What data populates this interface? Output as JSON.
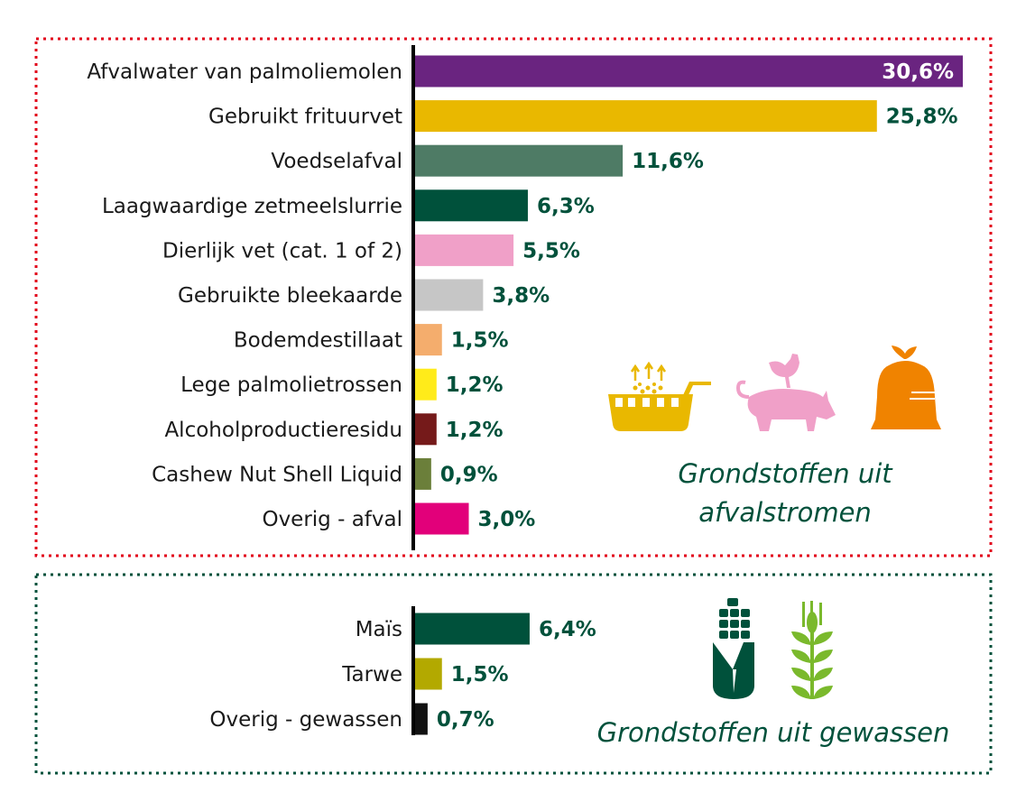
{
  "chart_data": [
    {
      "type": "bar",
      "orientation": "horizontal",
      "title": "Grondstoffen uit afvalstromen",
      "unit": "%",
      "categories": [
        "Afvalwater van palmoliemolen",
        "Gebruikt frituurvet",
        "Voedselafval",
        "Laagwaardige zetmeelslurrie",
        "Dierlijk vet (cat. 1 of 2)",
        "Gebruikte bleekaarde",
        "Bodemdestillaat",
        "Lege palmolietrossen",
        "Alcoholproductieresidu",
        "Cashew Nut Shell Liquid",
        "Overig - afval"
      ],
      "values": [
        30.6,
        25.8,
        11.6,
        6.3,
        5.5,
        3.8,
        1.5,
        1.2,
        1.2,
        0.9,
        3.0
      ],
      "labels": [
        "30,6%",
        "25,8%",
        "11,6%",
        "6,3%",
        "5,5%",
        "3,8%",
        "1,5%",
        "1,2%",
        "1,2%",
        "0,9%",
        "3,0%"
      ],
      "colors": [
        "#6a2480",
        "#e9b800",
        "#4e7b65",
        "#00513b",
        "#f0a0c8",
        "#c6c6c6",
        "#f4ad6d",
        "#ffeb1a",
        "#751a1a",
        "#6b7f3a",
        "#e2007a"
      ],
      "border_color": "#e2001a"
    },
    {
      "type": "bar",
      "orientation": "horizontal",
      "title": "Grondstoffen uit gewassen",
      "unit": "%",
      "categories": [
        "Maïs",
        "Tarwe",
        "Overig - gewassen"
      ],
      "values": [
        6.4,
        1.5,
        0.7
      ],
      "labels": [
        "6,4%",
        "1,5%",
        "0,7%"
      ],
      "colors": [
        "#00513b",
        "#b3a900",
        "#111111"
      ],
      "border_color": "#00513b"
    }
  ],
  "titles": {
    "waste_line1": "Grondstoffen uit",
    "waste_line2": "afvalstromen",
    "crops": "Grondstoffen uit gewassen"
  },
  "icons": [
    "fryer-icon",
    "pig-chicken-icon",
    "waste-bag-icon",
    "corn-icon",
    "wheat-icon"
  ],
  "label_color": "#00513b"
}
